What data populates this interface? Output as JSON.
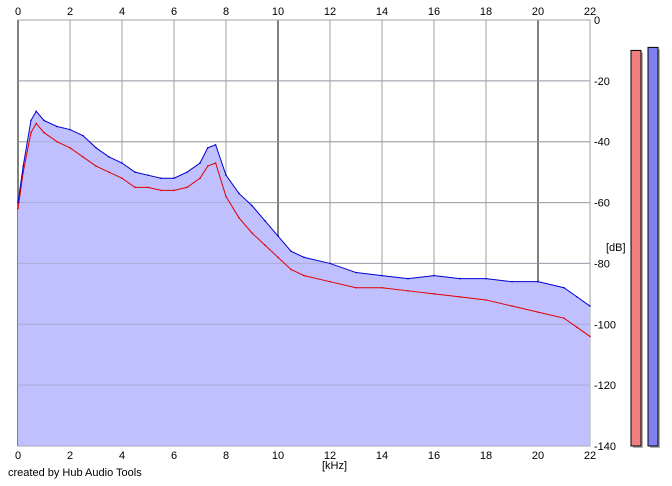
{
  "credit": "created by Hub Audio Tools",
  "chart_data": {
    "type": "area",
    "xlabel": "[kHz]",
    "ylabel": "[dB]",
    "xlim": [
      0,
      22
    ],
    "ylim": [
      -140,
      0
    ],
    "x_ticks": [
      0,
      2,
      4,
      6,
      8,
      10,
      12,
      14,
      16,
      18,
      20,
      22
    ],
    "y_ticks": [
      0,
      -20,
      -40,
      -60,
      -80,
      -100,
      -120,
      -140
    ],
    "grid": true,
    "x_ticks_on_top_and_bottom": true,
    "series": [
      {
        "color": "#0000d0",
        "fill": "#c0c0ff",
        "x": [
          0,
          0.2,
          0.5,
          0.7,
          1,
          1.5,
          2,
          2.5,
          3,
          3.5,
          4,
          4.5,
          5,
          5.5,
          6,
          6.5,
          7,
          7.3,
          7.6,
          8,
          8.5,
          9,
          9.5,
          10,
          10.5,
          11,
          12,
          13,
          14,
          15,
          16,
          17,
          18,
          19,
          20,
          21,
          21.5,
          22
        ],
        "values": [
          -60,
          -48,
          -33,
          -30,
          -33,
          -35,
          -36,
          -38,
          -42,
          -45,
          -47,
          -50,
          -51,
          -52,
          -52,
          -50,
          -47,
          -42,
          -41,
          -51,
          -57,
          -61,
          -66,
          -71,
          -76,
          -78,
          -80,
          -83,
          -84,
          -85,
          -84,
          -85,
          -85,
          -86,
          -86,
          -88,
          -91,
          -94
        ]
      },
      {
        "color": "#e00000",
        "x": [
          0,
          0.2,
          0.5,
          0.7,
          1,
          1.5,
          2,
          2.5,
          3,
          3.5,
          4,
          4.5,
          5,
          5.5,
          6,
          6.5,
          7,
          7.3,
          7.6,
          8,
          8.5,
          9,
          9.5,
          10,
          10.5,
          11,
          12,
          13,
          14,
          15,
          16,
          17,
          18,
          19,
          20,
          21,
          21.5,
          22
        ],
        "values": [
          -62,
          -50,
          -37,
          -34,
          -37,
          -40,
          -42,
          -45,
          -48,
          -50,
          -52,
          -55,
          -55,
          -56,
          -56,
          -55,
          -52,
          -48,
          -47,
          -58,
          -65,
          -70,
          -74,
          -78,
          -82,
          -84,
          -86,
          -88,
          -88,
          -89,
          -90,
          -91,
          -92,
          -94,
          -96,
          -98,
          -101,
          -104
        ]
      }
    ],
    "level_meters": [
      {
        "color": "#f08080",
        "level_db": -10
      },
      {
        "color": "#8080f0",
        "level_db": -9
      }
    ]
  }
}
